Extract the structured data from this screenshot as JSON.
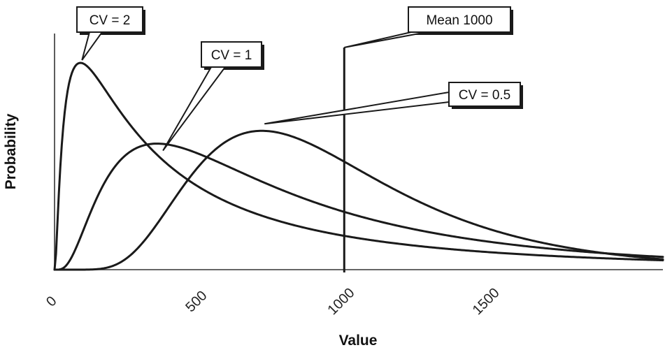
{
  "chart_data": {
    "type": "line",
    "title": "",
    "xlabel": "Value",
    "ylabel": "Probability",
    "xlim": [
      0,
      2100
    ],
    "x_ticks": [
      "0",
      "500",
      "1000",
      "1500"
    ],
    "x_tick_values": [
      0,
      500,
      1000,
      1500
    ],
    "grid": false,
    "legend": "none",
    "series": [
      {
        "name": "CV = 2",
        "cv": 2,
        "mean": 1000
      },
      {
        "name": "CV = 1",
        "cv": 1,
        "mean": 1000
      },
      {
        "name": "CV = 0.5",
        "cv": 0.5,
        "mean": 1000
      }
    ],
    "annotations": [
      {
        "text": "CV = 2",
        "target_series": 0
      },
      {
        "text": "CV = 1",
        "target_series": 1
      },
      {
        "text": "CV = 0.5",
        "target_series": 2
      },
      {
        "text": "Mean 1000",
        "target_x": 1000
      }
    ],
    "vline": {
      "x": 1000
    }
  }
}
